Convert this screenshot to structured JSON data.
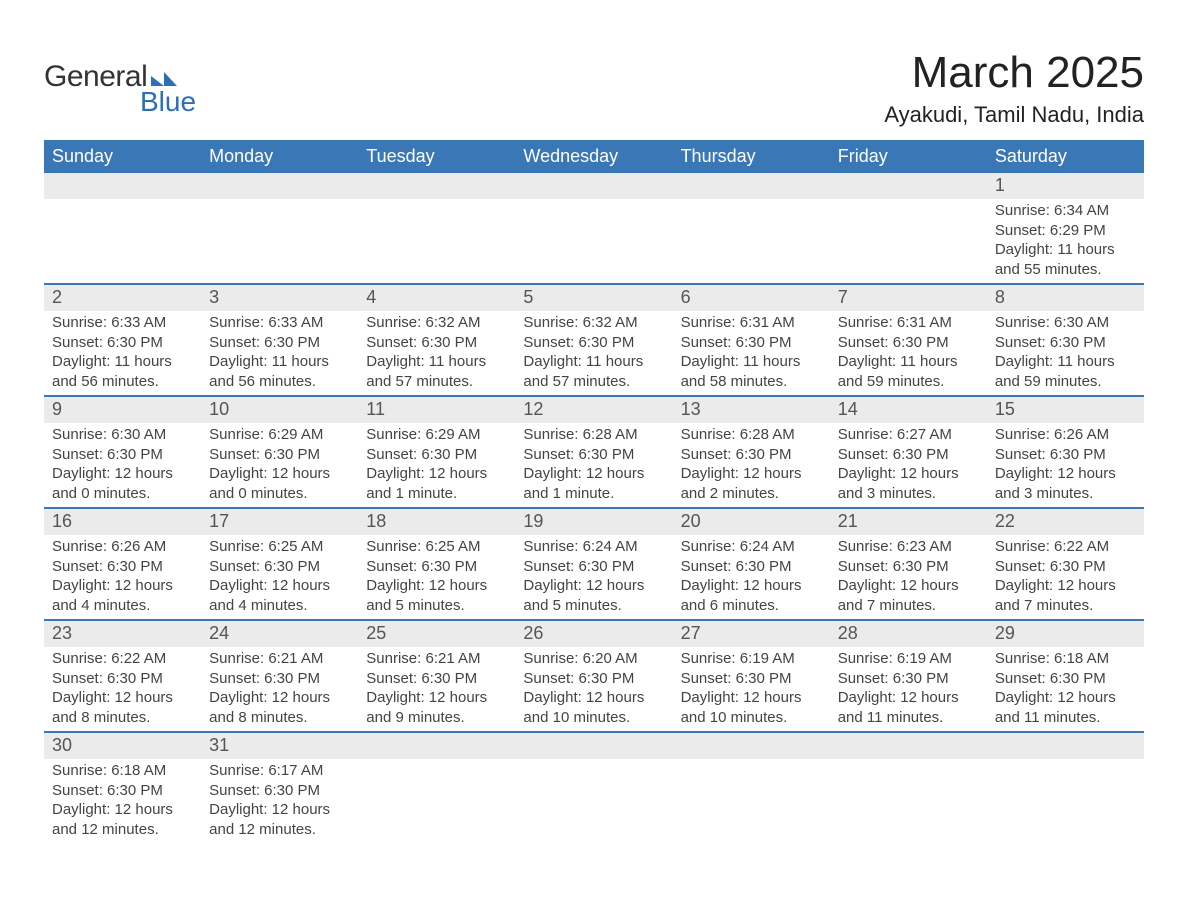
{
  "logo": {
    "general": "General",
    "blue": "Blue",
    "flag_color": "#2d6fb5"
  },
  "title": "March 2025",
  "location": "Ayakudi, Tamil Nadu, India",
  "colors": {
    "header_bg": "#3a77b7",
    "header_text": "#ffffff",
    "daynum_bg": "#ebebeb",
    "text": "#444444",
    "rule": "#3a77b7"
  },
  "weekdays": [
    "Sunday",
    "Monday",
    "Tuesday",
    "Wednesday",
    "Thursday",
    "Friday",
    "Saturday"
  ],
  "weeks": [
    [
      null,
      null,
      null,
      null,
      null,
      null,
      {
        "n": "1",
        "sunrise": "6:34 AM",
        "sunset": "6:29 PM",
        "day": "11 hours and 55 minutes."
      }
    ],
    [
      {
        "n": "2",
        "sunrise": "6:33 AM",
        "sunset": "6:30 PM",
        "day": "11 hours and 56 minutes."
      },
      {
        "n": "3",
        "sunrise": "6:33 AM",
        "sunset": "6:30 PM",
        "day": "11 hours and 56 minutes."
      },
      {
        "n": "4",
        "sunrise": "6:32 AM",
        "sunset": "6:30 PM",
        "day": "11 hours and 57 minutes."
      },
      {
        "n": "5",
        "sunrise": "6:32 AM",
        "sunset": "6:30 PM",
        "day": "11 hours and 57 minutes."
      },
      {
        "n": "6",
        "sunrise": "6:31 AM",
        "sunset": "6:30 PM",
        "day": "11 hours and 58 minutes."
      },
      {
        "n": "7",
        "sunrise": "6:31 AM",
        "sunset": "6:30 PM",
        "day": "11 hours and 59 minutes."
      },
      {
        "n": "8",
        "sunrise": "6:30 AM",
        "sunset": "6:30 PM",
        "day": "11 hours and 59 minutes."
      }
    ],
    [
      {
        "n": "9",
        "sunrise": "6:30 AM",
        "sunset": "6:30 PM",
        "day": "12 hours and 0 minutes."
      },
      {
        "n": "10",
        "sunrise": "6:29 AM",
        "sunset": "6:30 PM",
        "day": "12 hours and 0 minutes."
      },
      {
        "n": "11",
        "sunrise": "6:29 AM",
        "sunset": "6:30 PM",
        "day": "12 hours and 1 minute."
      },
      {
        "n": "12",
        "sunrise": "6:28 AM",
        "sunset": "6:30 PM",
        "day": "12 hours and 1 minute."
      },
      {
        "n": "13",
        "sunrise": "6:28 AM",
        "sunset": "6:30 PM",
        "day": "12 hours and 2 minutes."
      },
      {
        "n": "14",
        "sunrise": "6:27 AM",
        "sunset": "6:30 PM",
        "day": "12 hours and 3 minutes."
      },
      {
        "n": "15",
        "sunrise": "6:26 AM",
        "sunset": "6:30 PM",
        "day": "12 hours and 3 minutes."
      }
    ],
    [
      {
        "n": "16",
        "sunrise": "6:26 AM",
        "sunset": "6:30 PM",
        "day": "12 hours and 4 minutes."
      },
      {
        "n": "17",
        "sunrise": "6:25 AM",
        "sunset": "6:30 PM",
        "day": "12 hours and 4 minutes."
      },
      {
        "n": "18",
        "sunrise": "6:25 AM",
        "sunset": "6:30 PM",
        "day": "12 hours and 5 minutes."
      },
      {
        "n": "19",
        "sunrise": "6:24 AM",
        "sunset": "6:30 PM",
        "day": "12 hours and 5 minutes."
      },
      {
        "n": "20",
        "sunrise": "6:24 AM",
        "sunset": "6:30 PM",
        "day": "12 hours and 6 minutes."
      },
      {
        "n": "21",
        "sunrise": "6:23 AM",
        "sunset": "6:30 PM",
        "day": "12 hours and 7 minutes."
      },
      {
        "n": "22",
        "sunrise": "6:22 AM",
        "sunset": "6:30 PM",
        "day": "12 hours and 7 minutes."
      }
    ],
    [
      {
        "n": "23",
        "sunrise": "6:22 AM",
        "sunset": "6:30 PM",
        "day": "12 hours and 8 minutes."
      },
      {
        "n": "24",
        "sunrise": "6:21 AM",
        "sunset": "6:30 PM",
        "day": "12 hours and 8 minutes."
      },
      {
        "n": "25",
        "sunrise": "6:21 AM",
        "sunset": "6:30 PM",
        "day": "12 hours and 9 minutes."
      },
      {
        "n": "26",
        "sunrise": "6:20 AM",
        "sunset": "6:30 PM",
        "day": "12 hours and 10 minutes."
      },
      {
        "n": "27",
        "sunrise": "6:19 AM",
        "sunset": "6:30 PM",
        "day": "12 hours and 10 minutes."
      },
      {
        "n": "28",
        "sunrise": "6:19 AM",
        "sunset": "6:30 PM",
        "day": "12 hours and 11 minutes."
      },
      {
        "n": "29",
        "sunrise": "6:18 AM",
        "sunset": "6:30 PM",
        "day": "12 hours and 11 minutes."
      }
    ],
    [
      {
        "n": "30",
        "sunrise": "6:18 AM",
        "sunset": "6:30 PM",
        "day": "12 hours and 12 minutes."
      },
      {
        "n": "31",
        "sunrise": "6:17 AM",
        "sunset": "6:30 PM",
        "day": "12 hours and 12 minutes."
      },
      null,
      null,
      null,
      null,
      null
    ]
  ],
  "labels": {
    "sunrise": "Sunrise: ",
    "sunset": "Sunset: ",
    "daylight": "Daylight: "
  }
}
